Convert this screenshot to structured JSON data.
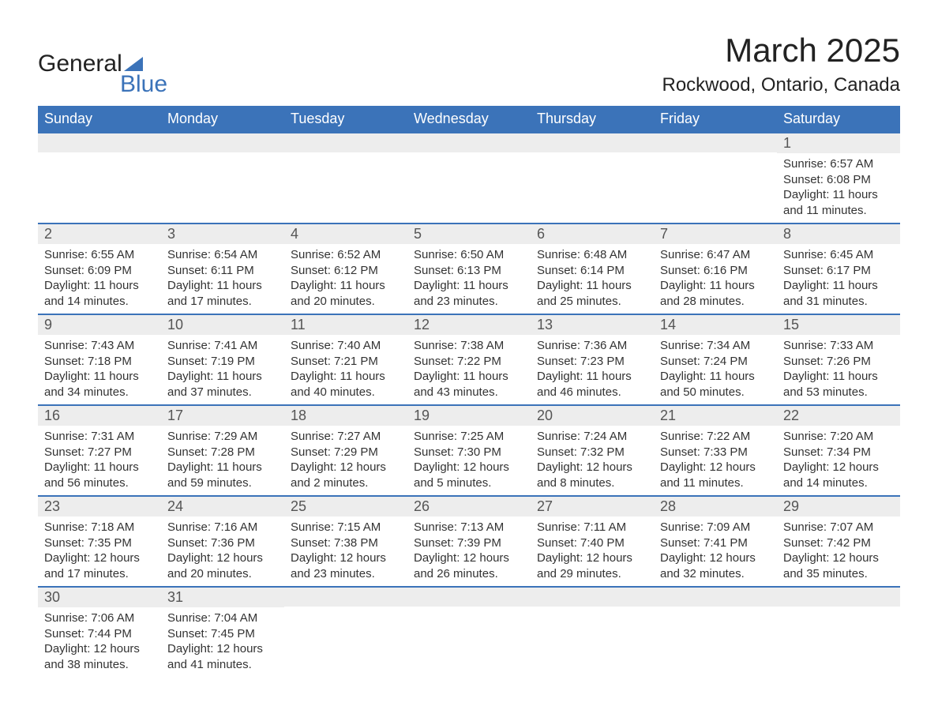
{
  "logo": {
    "text_general": "General",
    "text_blue": "Blue",
    "icon_color": "#3b73b9"
  },
  "header": {
    "month_title": "March 2025",
    "location": "Rockwood, Ontario, Canada"
  },
  "colors": {
    "header_bg": "#3b73b9",
    "header_text": "#ffffff",
    "daynum_bg": "#ededed",
    "row_border": "#3b73b9",
    "body_text": "#333333",
    "page_bg": "#ffffff"
  },
  "typography": {
    "month_title_fontsize": 42,
    "location_fontsize": 24,
    "dayheader_fontsize": 18,
    "daynum_fontsize": 18,
    "content_fontsize": 15
  },
  "day_headers": [
    "Sunday",
    "Monday",
    "Tuesday",
    "Wednesday",
    "Thursday",
    "Friday",
    "Saturday"
  ],
  "weeks": [
    [
      {
        "blank": true
      },
      {
        "blank": true
      },
      {
        "blank": true
      },
      {
        "blank": true
      },
      {
        "blank": true
      },
      {
        "blank": true
      },
      {
        "day": "1",
        "sunrise": "Sunrise: 6:57 AM",
        "sunset": "Sunset: 6:08 PM",
        "daylight1": "Daylight: 11 hours",
        "daylight2": "and 11 minutes."
      }
    ],
    [
      {
        "day": "2",
        "sunrise": "Sunrise: 6:55 AM",
        "sunset": "Sunset: 6:09 PM",
        "daylight1": "Daylight: 11 hours",
        "daylight2": "and 14 minutes."
      },
      {
        "day": "3",
        "sunrise": "Sunrise: 6:54 AM",
        "sunset": "Sunset: 6:11 PM",
        "daylight1": "Daylight: 11 hours",
        "daylight2": "and 17 minutes."
      },
      {
        "day": "4",
        "sunrise": "Sunrise: 6:52 AM",
        "sunset": "Sunset: 6:12 PM",
        "daylight1": "Daylight: 11 hours",
        "daylight2": "and 20 minutes."
      },
      {
        "day": "5",
        "sunrise": "Sunrise: 6:50 AM",
        "sunset": "Sunset: 6:13 PM",
        "daylight1": "Daylight: 11 hours",
        "daylight2": "and 23 minutes."
      },
      {
        "day": "6",
        "sunrise": "Sunrise: 6:48 AM",
        "sunset": "Sunset: 6:14 PM",
        "daylight1": "Daylight: 11 hours",
        "daylight2": "and 25 minutes."
      },
      {
        "day": "7",
        "sunrise": "Sunrise: 6:47 AM",
        "sunset": "Sunset: 6:16 PM",
        "daylight1": "Daylight: 11 hours",
        "daylight2": "and 28 minutes."
      },
      {
        "day": "8",
        "sunrise": "Sunrise: 6:45 AM",
        "sunset": "Sunset: 6:17 PM",
        "daylight1": "Daylight: 11 hours",
        "daylight2": "and 31 minutes."
      }
    ],
    [
      {
        "day": "9",
        "sunrise": "Sunrise: 7:43 AM",
        "sunset": "Sunset: 7:18 PM",
        "daylight1": "Daylight: 11 hours",
        "daylight2": "and 34 minutes."
      },
      {
        "day": "10",
        "sunrise": "Sunrise: 7:41 AM",
        "sunset": "Sunset: 7:19 PM",
        "daylight1": "Daylight: 11 hours",
        "daylight2": "and 37 minutes."
      },
      {
        "day": "11",
        "sunrise": "Sunrise: 7:40 AM",
        "sunset": "Sunset: 7:21 PM",
        "daylight1": "Daylight: 11 hours",
        "daylight2": "and 40 minutes."
      },
      {
        "day": "12",
        "sunrise": "Sunrise: 7:38 AM",
        "sunset": "Sunset: 7:22 PM",
        "daylight1": "Daylight: 11 hours",
        "daylight2": "and 43 minutes."
      },
      {
        "day": "13",
        "sunrise": "Sunrise: 7:36 AM",
        "sunset": "Sunset: 7:23 PM",
        "daylight1": "Daylight: 11 hours",
        "daylight2": "and 46 minutes."
      },
      {
        "day": "14",
        "sunrise": "Sunrise: 7:34 AM",
        "sunset": "Sunset: 7:24 PM",
        "daylight1": "Daylight: 11 hours",
        "daylight2": "and 50 minutes."
      },
      {
        "day": "15",
        "sunrise": "Sunrise: 7:33 AM",
        "sunset": "Sunset: 7:26 PM",
        "daylight1": "Daylight: 11 hours",
        "daylight2": "and 53 minutes."
      }
    ],
    [
      {
        "day": "16",
        "sunrise": "Sunrise: 7:31 AM",
        "sunset": "Sunset: 7:27 PM",
        "daylight1": "Daylight: 11 hours",
        "daylight2": "and 56 minutes."
      },
      {
        "day": "17",
        "sunrise": "Sunrise: 7:29 AM",
        "sunset": "Sunset: 7:28 PM",
        "daylight1": "Daylight: 11 hours",
        "daylight2": "and 59 minutes."
      },
      {
        "day": "18",
        "sunrise": "Sunrise: 7:27 AM",
        "sunset": "Sunset: 7:29 PM",
        "daylight1": "Daylight: 12 hours",
        "daylight2": "and 2 minutes."
      },
      {
        "day": "19",
        "sunrise": "Sunrise: 7:25 AM",
        "sunset": "Sunset: 7:30 PM",
        "daylight1": "Daylight: 12 hours",
        "daylight2": "and 5 minutes."
      },
      {
        "day": "20",
        "sunrise": "Sunrise: 7:24 AM",
        "sunset": "Sunset: 7:32 PM",
        "daylight1": "Daylight: 12 hours",
        "daylight2": "and 8 minutes."
      },
      {
        "day": "21",
        "sunrise": "Sunrise: 7:22 AM",
        "sunset": "Sunset: 7:33 PM",
        "daylight1": "Daylight: 12 hours",
        "daylight2": "and 11 minutes."
      },
      {
        "day": "22",
        "sunrise": "Sunrise: 7:20 AM",
        "sunset": "Sunset: 7:34 PM",
        "daylight1": "Daylight: 12 hours",
        "daylight2": "and 14 minutes."
      }
    ],
    [
      {
        "day": "23",
        "sunrise": "Sunrise: 7:18 AM",
        "sunset": "Sunset: 7:35 PM",
        "daylight1": "Daylight: 12 hours",
        "daylight2": "and 17 minutes."
      },
      {
        "day": "24",
        "sunrise": "Sunrise: 7:16 AM",
        "sunset": "Sunset: 7:36 PM",
        "daylight1": "Daylight: 12 hours",
        "daylight2": "and 20 minutes."
      },
      {
        "day": "25",
        "sunrise": "Sunrise: 7:15 AM",
        "sunset": "Sunset: 7:38 PM",
        "daylight1": "Daylight: 12 hours",
        "daylight2": "and 23 minutes."
      },
      {
        "day": "26",
        "sunrise": "Sunrise: 7:13 AM",
        "sunset": "Sunset: 7:39 PM",
        "daylight1": "Daylight: 12 hours",
        "daylight2": "and 26 minutes."
      },
      {
        "day": "27",
        "sunrise": "Sunrise: 7:11 AM",
        "sunset": "Sunset: 7:40 PM",
        "daylight1": "Daylight: 12 hours",
        "daylight2": "and 29 minutes."
      },
      {
        "day": "28",
        "sunrise": "Sunrise: 7:09 AM",
        "sunset": "Sunset: 7:41 PM",
        "daylight1": "Daylight: 12 hours",
        "daylight2": "and 32 minutes."
      },
      {
        "day": "29",
        "sunrise": "Sunrise: 7:07 AM",
        "sunset": "Sunset: 7:42 PM",
        "daylight1": "Daylight: 12 hours",
        "daylight2": "and 35 minutes."
      }
    ],
    [
      {
        "day": "30",
        "sunrise": "Sunrise: 7:06 AM",
        "sunset": "Sunset: 7:44 PM",
        "daylight1": "Daylight: 12 hours",
        "daylight2": "and 38 minutes."
      },
      {
        "day": "31",
        "sunrise": "Sunrise: 7:04 AM",
        "sunset": "Sunset: 7:45 PM",
        "daylight1": "Daylight: 12 hours",
        "daylight2": "and 41 minutes."
      },
      {
        "blank": true
      },
      {
        "blank": true
      },
      {
        "blank": true
      },
      {
        "blank": true
      },
      {
        "blank": true
      }
    ]
  ]
}
